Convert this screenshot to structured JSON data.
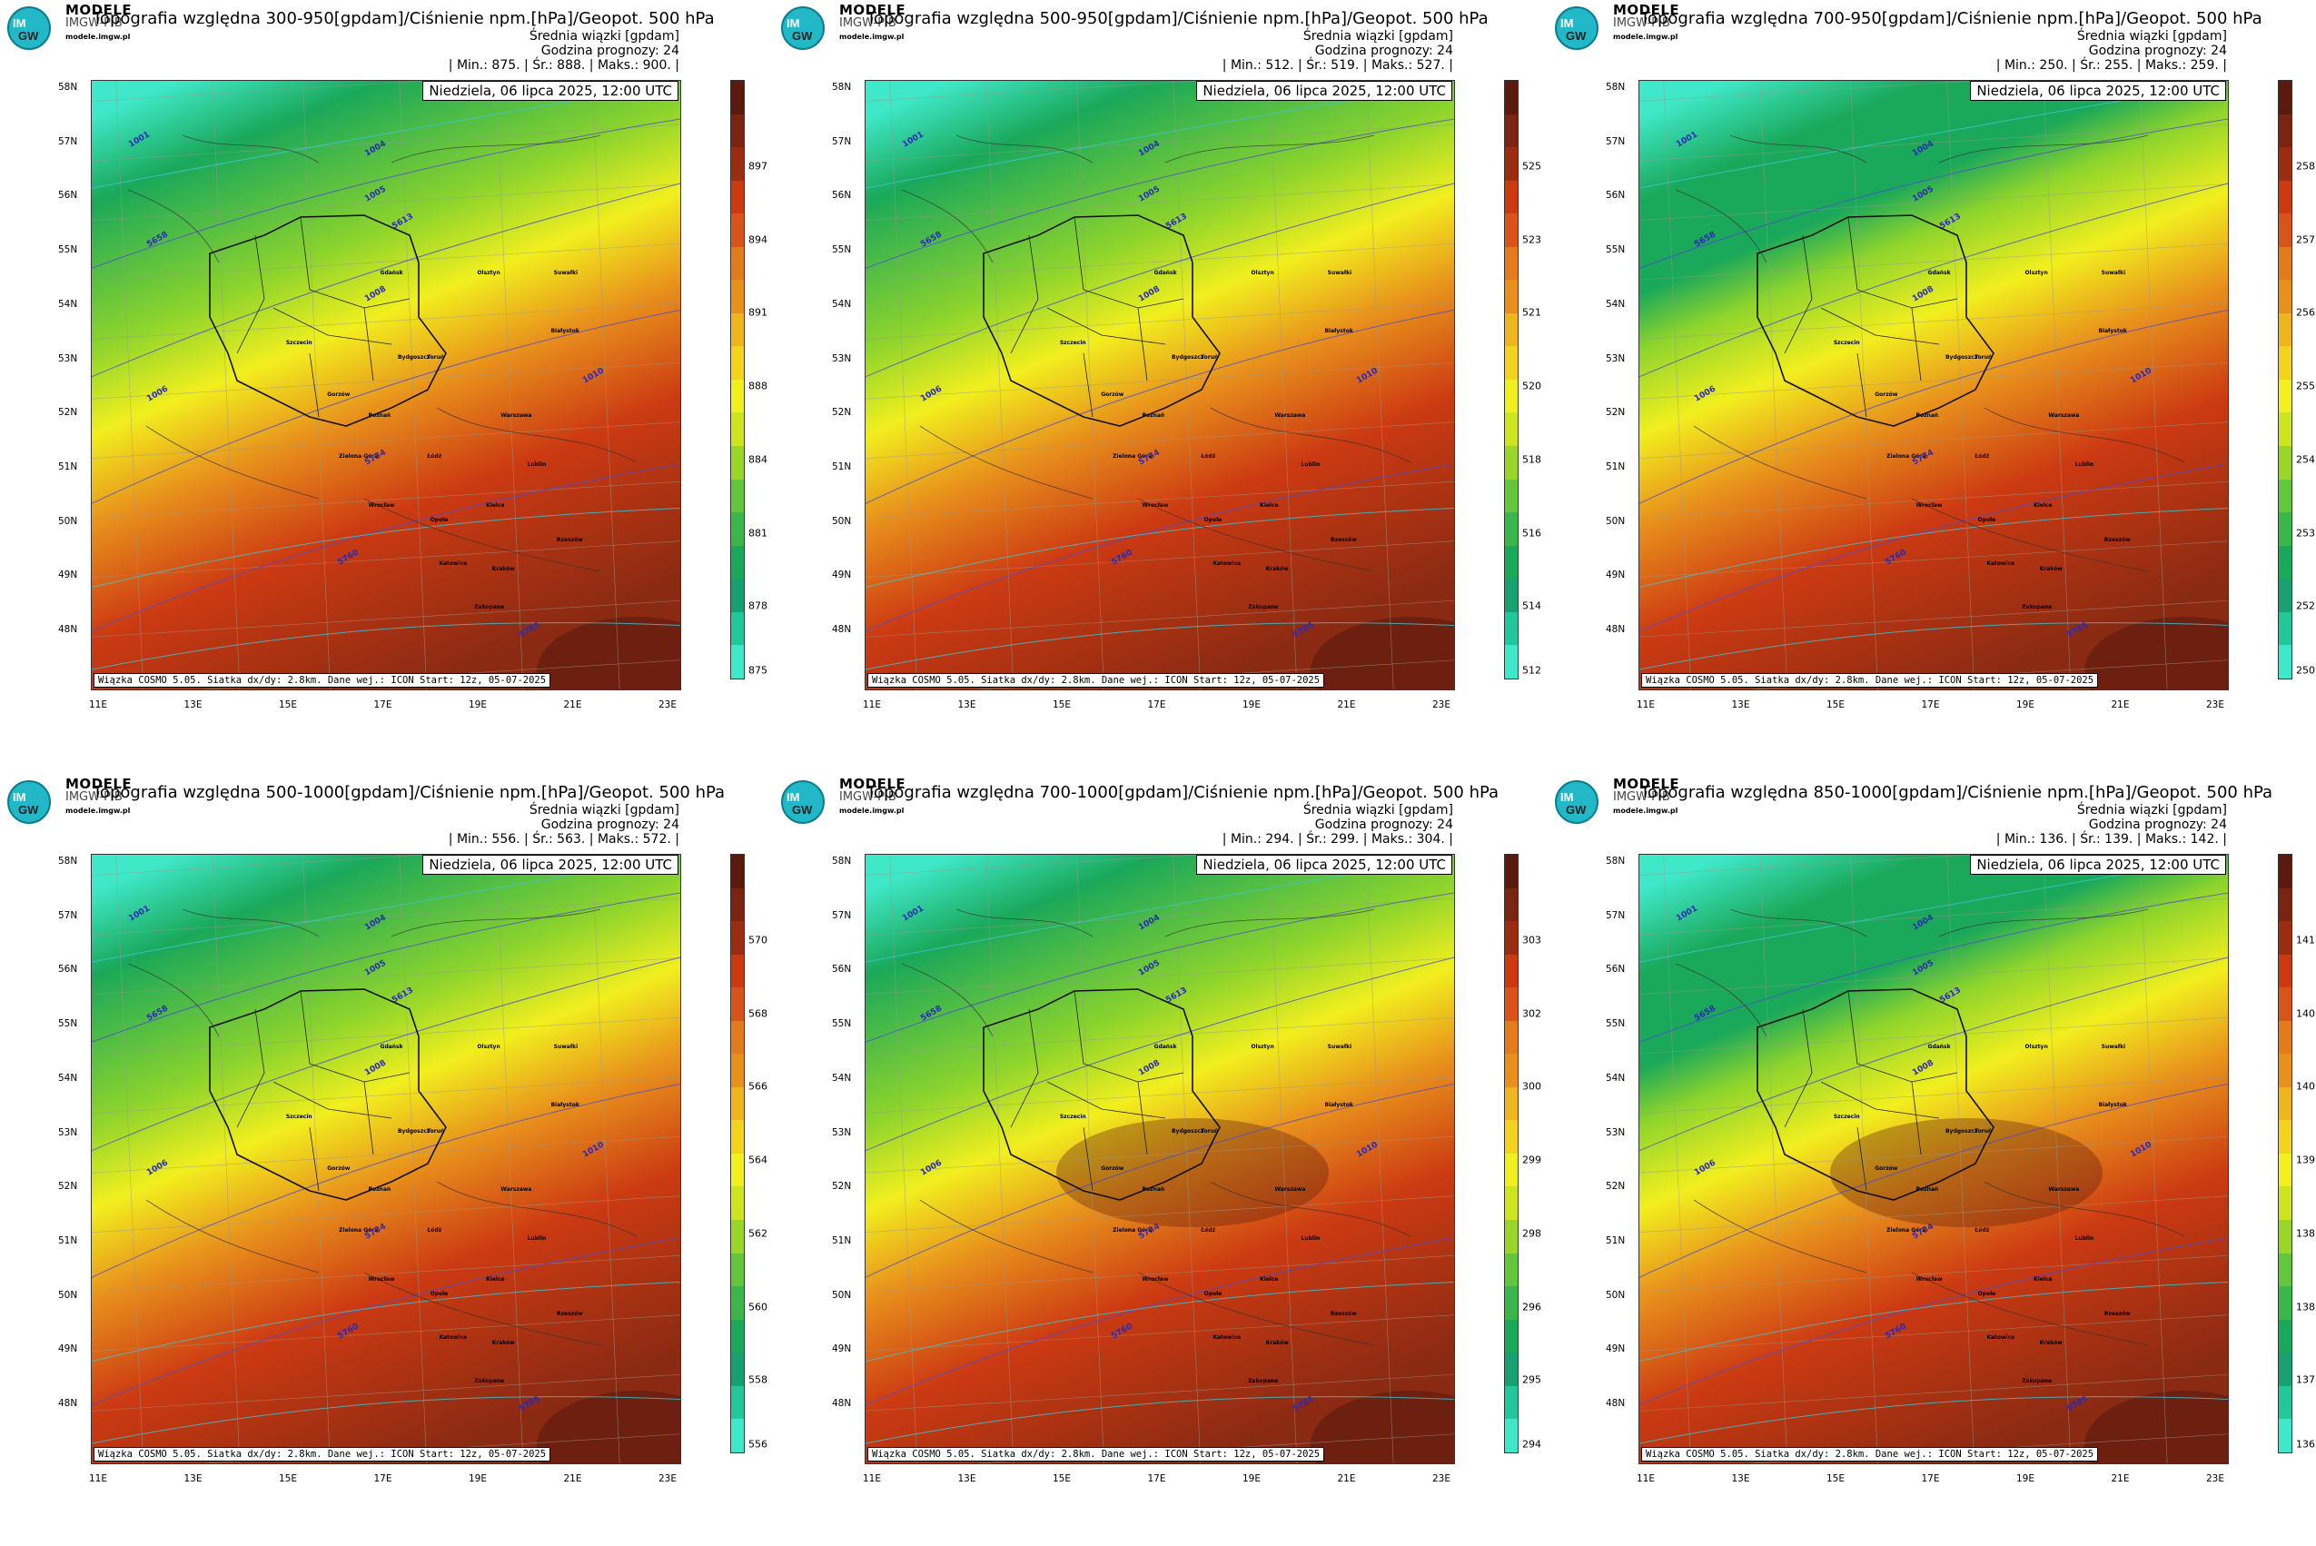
{
  "brand": {
    "name": "MODELE",
    "sub": "IMGW-PIB",
    "url": "modele.imgw.pl",
    "logo_text": [
      "IM",
      "GW"
    ]
  },
  "common": {
    "subtitle": "Średnia wiązki [gpdam]",
    "forecast_hour": "Godzina prognozy: 24",
    "date": "Niedziela, 06 lipca 2025, 12:00 UTC",
    "footer": "Wiązka COSMO 5.05. Siatka dx/dy: 2.8km. Dane wej.: ICON Start: 12z, 05-07-2025",
    "lat_labels": [
      "58N",
      "57N",
      "56N",
      "55N",
      "54N",
      "53N",
      "52N",
      "51N",
      "50N",
      "49N",
      "48N"
    ],
    "lon_labels": [
      "11E",
      "13E",
      "15E",
      "17E",
      "19E",
      "21E",
      "23E"
    ],
    "cities": [
      "Gdańsk",
      "Olsztyn",
      "Suwałki",
      "Szczecin",
      "Bydgoszcz",
      "Toruń",
      "Białystok",
      "Gorzów",
      "Poznań",
      "Warszawa",
      "Zielona Góra",
      "Łódź",
      "Lublin",
      "Wrocław",
      "Kielce",
      "Opole",
      "Rzeszów",
      "Katowice",
      "Kraków",
      "Zakopane"
    ],
    "isobar_labels": [
      "1001",
      "1004",
      "1005",
      "1006",
      "1008",
      "1010",
      "5613",
      "5658",
      "5734",
      "5760",
      "5785"
    ]
  },
  "colors": {
    "low": "#3fe8c8",
    "green": "#1aa85a",
    "yellow": "#f2ef1e",
    "orange": "#e8901c",
    "red": "#cc3a12",
    "dark": "#5a1a0e"
  },
  "panels": [
    {
      "title": "Topografia względna 300-950[gpdam]/Ciśnienie npm.[hPa]/Geopot. 500 hPa",
      "min": "875.",
      "avg": "888.",
      "max": "900.",
      "ticks": [
        "897",
        "894",
        "891",
        "888",
        "884",
        "881",
        "878",
        "875"
      ]
    },
    {
      "title": "Topografia względna 500-950[gpdam]/Ciśnienie npm.[hPa]/Geopot. 500 hPa",
      "min": "512.",
      "avg": "519.",
      "max": "527.",
      "ticks": [
        "525",
        "523",
        "521",
        "520",
        "518",
        "516",
        "514",
        "512"
      ]
    },
    {
      "title": "Topografia względna 700-950[gpdam]/Ciśnienie npm.[hPa]/Geopot. 500 hPa",
      "min": "250.",
      "avg": "255.",
      "max": "259.",
      "ticks": [
        "258",
        "257",
        "256",
        "255",
        "254",
        "253",
        "252",
        "250"
      ]
    },
    {
      "title": "Topografia względna 500-1000[gpdam]/Ciśnienie npm.[hPa]/Geopot. 500 hPa",
      "min": "556.",
      "avg": "563.",
      "max": "572.",
      "ticks": [
        "570",
        "568",
        "566",
        "564",
        "562",
        "560",
        "558",
        "556"
      ]
    },
    {
      "title": "Topografia względna 700-1000[gpdam]/Ciśnienie npm.[hPa]/Geopot. 500 hPa",
      "min": "294.",
      "avg": "299.",
      "max": "304.",
      "ticks": [
        "303",
        "302",
        "300",
        "299",
        "298",
        "296",
        "295",
        "294"
      ]
    },
    {
      "title": "Topografia względna 850-1000[gpdam]/Ciśnienie npm.[hPa]/Geopot. 500 hPa",
      "min": "136.",
      "avg": "139.",
      "max": "142.",
      "ticks": [
        "141",
        "140",
        "140",
        "139",
        "138",
        "138",
        "137",
        "136"
      ]
    }
  ]
}
